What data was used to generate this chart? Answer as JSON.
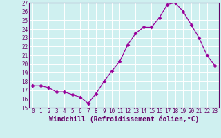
{
  "x": [
    0,
    1,
    2,
    3,
    4,
    5,
    6,
    7,
    8,
    9,
    10,
    11,
    12,
    13,
    14,
    15,
    16,
    17,
    18,
    19,
    20,
    21,
    22,
    23
  ],
  "y": [
    17.5,
    17.5,
    17.3,
    16.8,
    16.8,
    16.5,
    16.2,
    15.5,
    16.6,
    18.0,
    19.2,
    20.3,
    22.2,
    23.5,
    24.2,
    24.2,
    25.3,
    26.8,
    27.0,
    26.0,
    24.5,
    23.0,
    21.0,
    19.8
  ],
  "xlabel": "Windchill (Refroidissement éolien,°C)",
  "xlim_min": -0.5,
  "xlim_max": 23.5,
  "ylim_min": 15,
  "ylim_max": 27,
  "yticks": [
    15,
    16,
    17,
    18,
    19,
    20,
    21,
    22,
    23,
    24,
    25,
    26,
    27
  ],
  "xticks": [
    0,
    1,
    2,
    3,
    4,
    5,
    6,
    7,
    8,
    9,
    10,
    11,
    12,
    13,
    14,
    15,
    16,
    17,
    18,
    19,
    20,
    21,
    22,
    23
  ],
  "line_color": "#990099",
  "marker": "D",
  "marker_size": 2.5,
  "line_width": 0.9,
  "bg_color": "#cff0f0",
  "grid_color": "#ffffff",
  "tick_label_fontsize": 5.5,
  "xlabel_fontsize": 7.0,
  "spine_color": "#660066",
  "tick_color": "#660066"
}
